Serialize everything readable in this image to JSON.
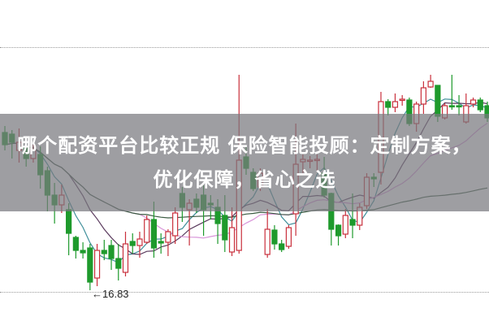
{
  "banner": {
    "headline": "哪个配资平台比较正规 保险智能投顾：定制方案，优化保障，省心之选"
  },
  "chart_data": {
    "type": "candlestick",
    "title": "",
    "xlabel": "",
    "ylabel": "",
    "ylim": [
      15.95,
      23.97
    ],
    "grid": true,
    "gridlines": [
      22.81,
      16.79
    ],
    "annotations": [
      {
        "text": "←16.83",
        "value": 16.83
      }
    ],
    "colors": {
      "up": "#c9303c",
      "down": "#1e9a2c",
      "ma5": "#3f8f9a",
      "ma10": "#5b3b5e",
      "ma20": "#d995d9",
      "ma60": "#3b5b42"
    },
    "moving_averages": [
      5,
      10,
      20,
      60
    ],
    "candles_ohlc_fields": [
      "open",
      "close",
      "high",
      "low"
    ],
    "candles": [
      [
        20.71,
        20.41,
        20.87,
        20.27
      ],
      [
        20.67,
        20.47,
        20.77,
        20.07
      ],
      [
        20.27,
        20.47,
        20.81,
        19.97
      ],
      [
        20.37,
        20.07,
        20.47,
        19.87
      ],
      [
        20.07,
        20.27,
        20.41,
        19.97
      ],
      [
        20.17,
        19.67,
        20.37,
        19.33
      ],
      [
        19.77,
        19.17,
        19.87,
        18.77
      ],
      [
        19.17,
        18.93,
        19.47,
        18.47
      ],
      [
        18.93,
        19.17,
        19.43,
        18.73
      ],
      [
        18.81,
        18.23,
        18.97,
        17.69
      ],
      [
        18.13,
        17.81,
        18.17,
        17.61
      ],
      [
        17.81,
        17.75,
        18.01,
        17.61
      ],
      [
        17.87,
        17.03,
        17.97,
        16.83
      ],
      [
        17.13,
        17.81,
        17.97,
        16.93
      ],
      [
        17.81,
        17.73,
        18.07,
        17.57
      ],
      [
        17.93,
        17.61,
        18.07,
        17.33
      ],
      [
        17.61,
        17.37,
        17.97,
        17.07
      ],
      [
        17.27,
        17.97,
        18.27,
        17.17
      ],
      [
        18.03,
        17.93,
        18.23,
        17.73
      ],
      [
        17.93,
        18.09,
        18.27,
        17.63
      ],
      [
        18.01,
        18.57,
        18.67,
        17.97
      ],
      [
        18.57,
        17.87,
        19.01,
        17.63
      ],
      [
        18.03,
        17.99,
        18.23,
        17.73
      ],
      [
        18.01,
        18.27,
        18.33,
        17.67
      ],
      [
        18.17,
        18.73,
        18.87,
        17.97
      ],
      [
        19.21,
        18.87,
        19.37,
        18.51
      ],
      [
        18.81,
        18.97,
        19.07,
        17.93
      ],
      [
        19.07,
        18.87,
        19.21,
        18.73
      ],
      [
        19.17,
        18.81,
        19.41,
        18.17
      ],
      [
        18.97,
        18.93,
        19.17,
        18.57
      ],
      [
        18.87,
        18.47,
        19.07,
        17.97
      ],
      [
        18.67,
        18.07,
        19.17,
        17.77
      ],
      [
        17.77,
        18.37,
        18.87,
        17.67
      ],
      [
        17.81,
        20.03,
        22.13,
        17.73
      ],
      [
        20.11,
        19.83,
        20.37,
        19.67
      ],
      [
        19.73,
        19.33,
        19.83,
        19.27
      ],
      [
        19.37,
        19.71,
        19.83,
        19.27
      ],
      [
        17.71,
        18.33,
        18.83,
        17.63
      ],
      [
        18.31,
        17.97,
        18.43,
        17.83
      ],
      [
        17.97,
        17.83,
        18.07,
        17.77
      ],
      [
        17.91,
        18.37,
        18.43,
        17.85
      ],
      [
        18.71,
        19.93,
        20.93,
        18.17
      ],
      [
        19.99,
        20.05,
        20.17,
        19.71
      ],
      [
        20.01,
        20.03,
        20.13,
        19.83
      ],
      [
        20.03,
        20.05,
        20.17,
        19.77
      ],
      [
        19.71,
        19.17,
        20.11,
        19.11
      ],
      [
        19.21,
        18.33,
        19.23,
        17.93
      ],
      [
        18.43,
        18.17,
        18.45,
        17.93
      ],
      [
        18.21,
        18.67,
        18.83,
        18.11
      ],
      [
        18.57,
        18.43,
        19.21,
        18.11
      ],
      [
        18.43,
        18.87,
        18.97,
        18.31
      ],
      [
        18.91,
        19.61,
        19.71,
        18.83
      ],
      [
        19.61,
        19.57,
        19.71,
        19.37
      ],
      [
        19.73,
        21.47,
        21.71,
        19.43
      ],
      [
        21.47,
        21.33,
        21.53,
        21.13
      ],
      [
        21.33,
        21.47,
        21.67,
        21.21
      ],
      [
        21.51,
        21.53,
        21.63,
        21.37
      ],
      [
        21.51,
        20.93,
        21.57,
        20.87
      ],
      [
        20.93,
        21.41,
        21.47,
        20.73
      ],
      [
        21.41,
        21.81,
        21.97,
        21.17
      ],
      [
        21.83,
        21.97,
        22.13,
        21.81
      ],
      [
        21.87,
        21.11,
        21.87,
        20.97
      ],
      [
        21.07,
        21.37,
        21.43,
        21.03
      ],
      [
        21.37,
        21.35,
        22.13,
        21.27
      ],
      [
        21.37,
        21.35,
        21.63,
        21.13
      ],
      [
        20.97,
        21.37,
        21.67,
        20.93
      ],
      [
        21.41,
        21.51,
        21.57,
        21.33
      ],
      [
        21.51,
        21.27,
        21.57,
        21.21
      ],
      [
        21.37,
        21.07,
        21.47,
        20.97
      ]
    ]
  }
}
